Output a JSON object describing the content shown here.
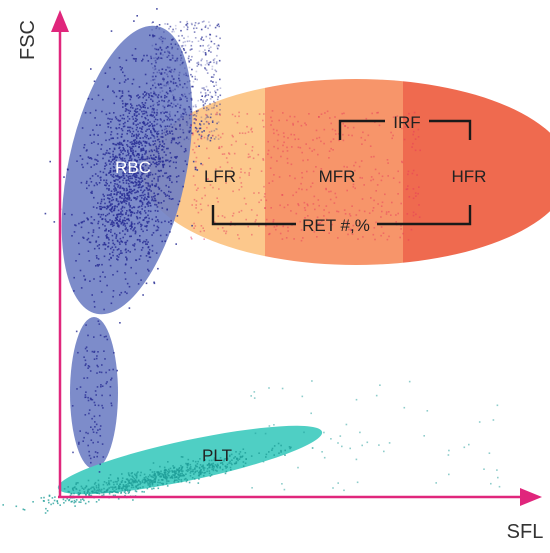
{
  "axes": {
    "y_label": "FSC",
    "x_label": "SFL",
    "axis_color": "#e0267c"
  },
  "populations": {
    "rbc": {
      "label": "RBC",
      "color": "#6f80c4",
      "dot_color": "#2a2f95"
    },
    "plt": {
      "label": "PLT",
      "color": "#4fcfc4",
      "dot_color": "#1d9c97"
    },
    "lfr": {
      "label": "LFR",
      "color": "#fcc88c"
    },
    "mfr": {
      "label": "MFR",
      "color": "#f7956a"
    },
    "hfr": {
      "label": "HFR",
      "color": "#ef6a4f"
    }
  },
  "brackets": {
    "irf": {
      "label": "IRF"
    },
    "ret": {
      "label": "RET #,%"
    }
  }
}
